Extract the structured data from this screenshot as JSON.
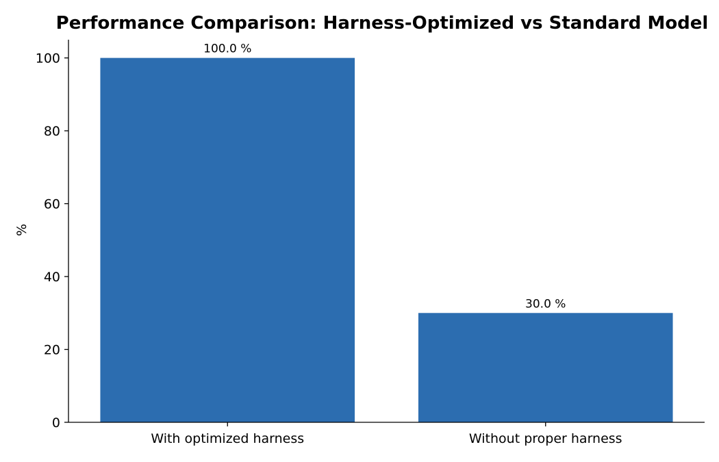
{
  "chart_data": {
    "type": "bar",
    "title": "Performance Comparison: Harness-Optimized vs Standard Model",
    "xlabel": "",
    "ylabel": "%",
    "categories": [
      "With optimized harness",
      "Without proper harness"
    ],
    "values": [
      100.0,
      30.0
    ],
    "data_labels": [
      "100.0 %",
      "30.0 %"
    ],
    "ylim": [
      0,
      105
    ],
    "yticks": [
      0,
      20,
      40,
      60,
      80,
      100
    ],
    "bar_color": "#2c6db0",
    "grid": false,
    "legend": "none"
  }
}
